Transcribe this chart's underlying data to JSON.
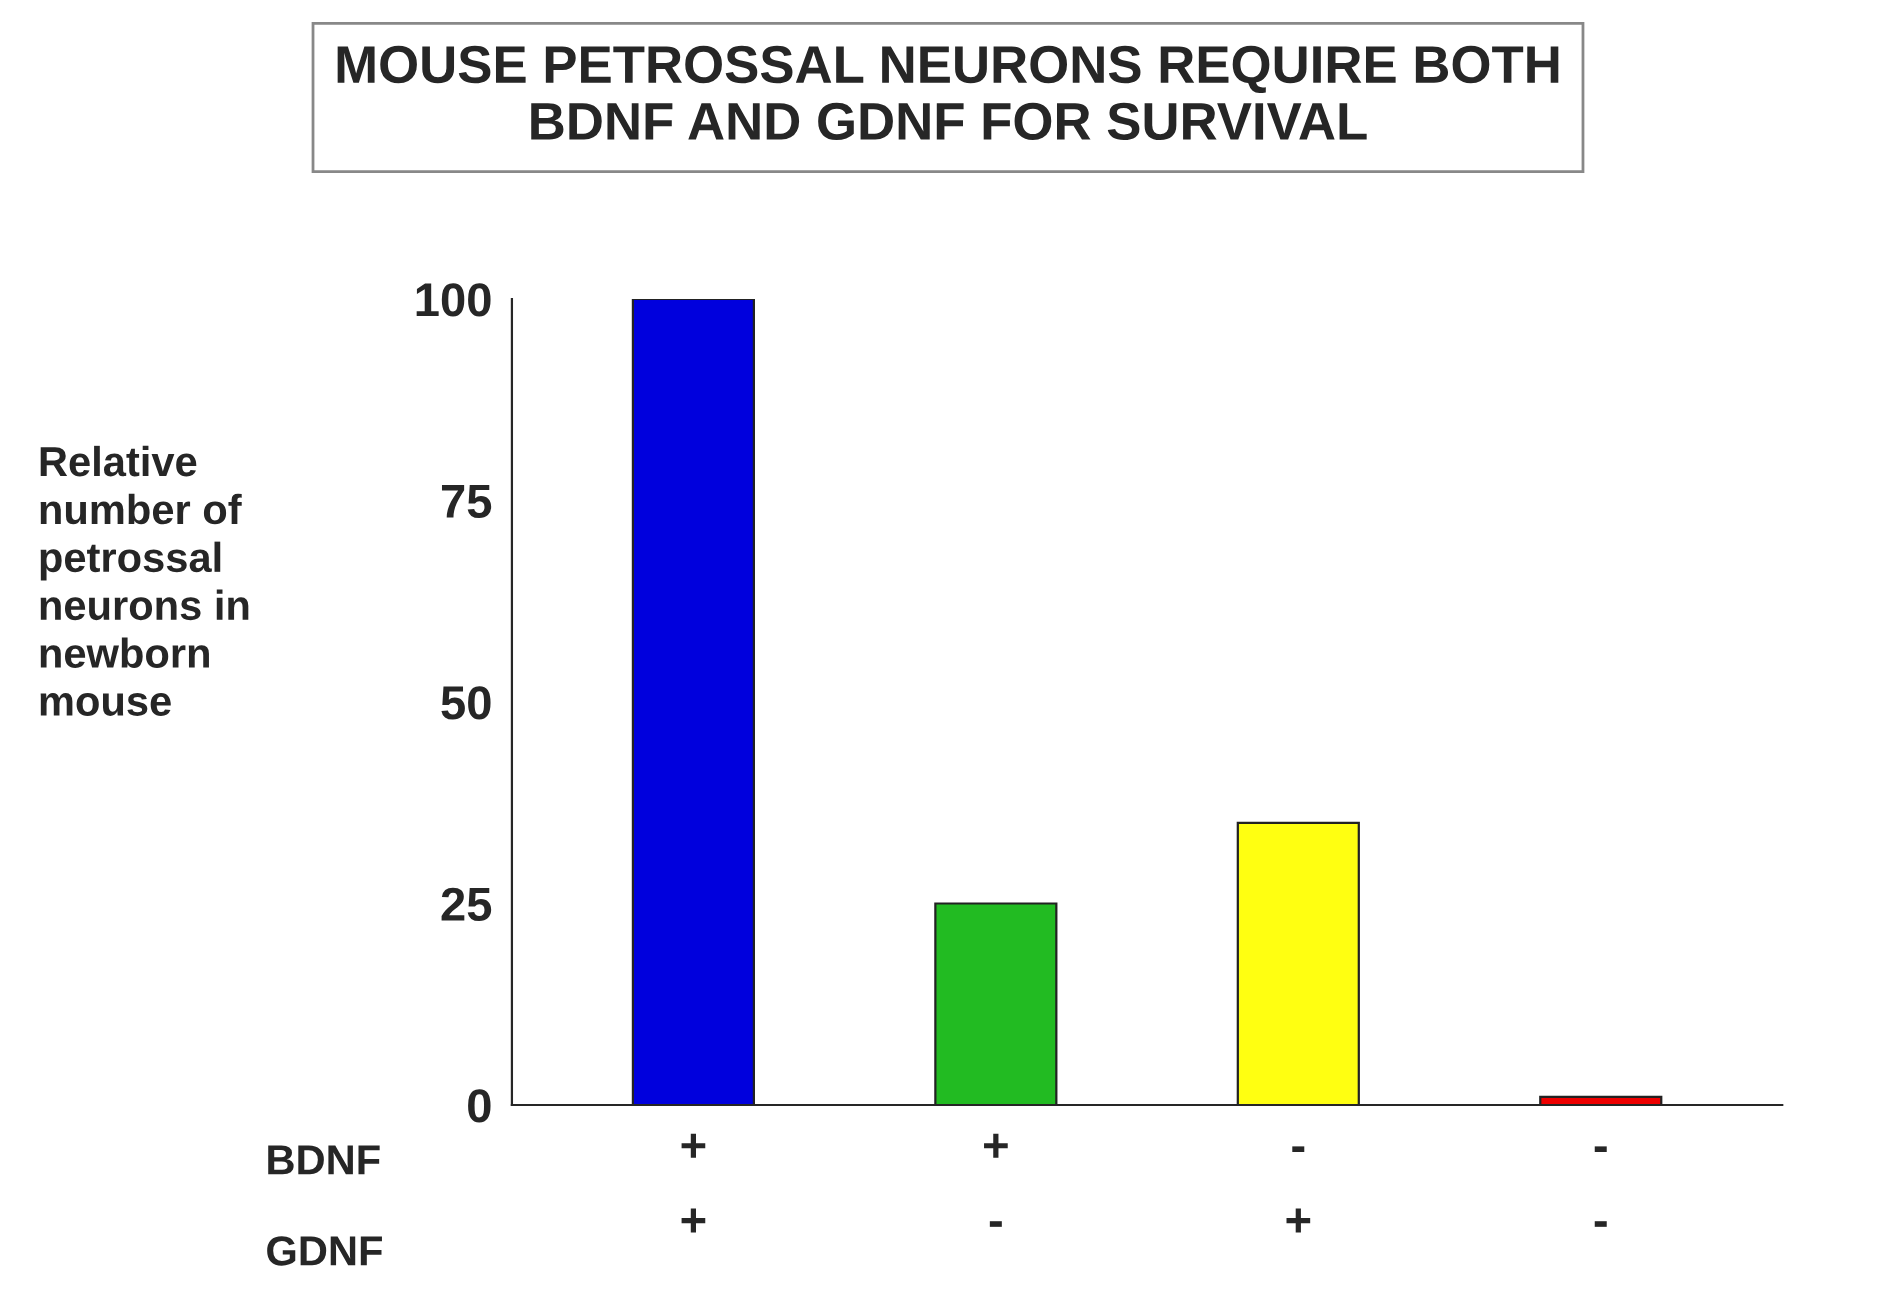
{
  "chart_data": {
    "type": "bar",
    "title": "MOUSE PETROSSAL NEURONS REQUIRE BOTH\nBDNF AND GDNF FOR SURVIVAL",
    "ylabel": "Relative\nnumber of\npetrossal\nneurons in\nnewborn\nmouse",
    "categories": [
      "+\n+",
      "+\n-",
      "-\n+",
      "-\n-"
    ],
    "values": [
      100,
      25,
      35,
      1
    ],
    "colors": [
      "#0000dd",
      "#22bb22",
      "#ffff11",
      "#ee0000"
    ],
    "ylim": [
      0,
      100
    ],
    "yticks": [
      0,
      25,
      50,
      75,
      100
    ],
    "grid": false,
    "annotations": [
      "BDNF",
      "GDNF"
    ]
  }
}
